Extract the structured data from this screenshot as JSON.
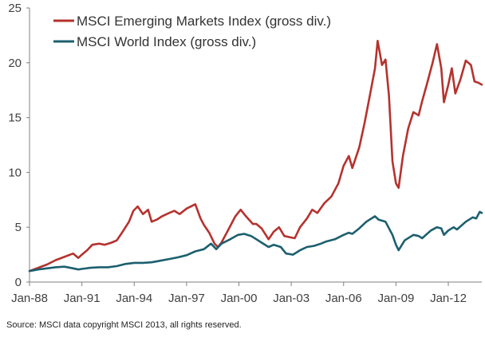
{
  "chart_data": {
    "type": "line",
    "title": "",
    "xlabel": "",
    "ylabel": "",
    "ylim": [
      0,
      25
    ],
    "yticks": [
      0,
      5,
      10,
      15,
      20,
      25
    ],
    "xticks": [
      "Jan-88",
      "Jan-91",
      "Jan-94",
      "Jan-97",
      "Jan-00",
      "Jan-03",
      "Jan-06",
      "Jan-09",
      "Jan-12"
    ],
    "x_range": [
      1988.0,
      2013.92
    ],
    "grid": false,
    "legend_position": "top-left",
    "series": [
      {
        "name": "MSCI Emerging Markets Index (gross div.)",
        "color": "#b5322e",
        "points": [
          [
            1988.0,
            1.0
          ],
          [
            1988.5,
            1.3
          ],
          [
            1989.0,
            1.6
          ],
          [
            1989.5,
            2.0
          ],
          [
            1990.0,
            2.3
          ],
          [
            1990.5,
            2.6
          ],
          [
            1990.8,
            2.2
          ],
          [
            1991.0,
            2.5
          ],
          [
            1991.3,
            2.9
          ],
          [
            1991.6,
            3.4
          ],
          [
            1992.0,
            3.5
          ],
          [
            1992.3,
            3.4
          ],
          [
            1992.7,
            3.6
          ],
          [
            1993.0,
            3.8
          ],
          [
            1993.3,
            4.5
          ],
          [
            1993.7,
            5.5
          ],
          [
            1993.95,
            6.5
          ],
          [
            1994.2,
            6.9
          ],
          [
            1994.5,
            6.2
          ],
          [
            1994.8,
            6.6
          ],
          [
            1995.0,
            5.5
          ],
          [
            1995.3,
            5.7
          ],
          [
            1995.6,
            6.0
          ],
          [
            1996.0,
            6.3
          ],
          [
            1996.3,
            6.5
          ],
          [
            1996.6,
            6.2
          ],
          [
            1997.0,
            6.7
          ],
          [
            1997.5,
            7.1
          ],
          [
            1997.8,
            5.8
          ],
          [
            1998.0,
            5.2
          ],
          [
            1998.3,
            4.5
          ],
          [
            1998.6,
            3.5
          ],
          [
            1998.8,
            3.2
          ],
          [
            1999.0,
            3.6
          ],
          [
            1999.4,
            4.8
          ],
          [
            1999.8,
            6.0
          ],
          [
            2000.1,
            6.6
          ],
          [
            2000.4,
            6.0
          ],
          [
            2000.8,
            5.3
          ],
          [
            2001.0,
            5.3
          ],
          [
            2001.3,
            4.9
          ],
          [
            2001.7,
            3.9
          ],
          [
            2002.0,
            4.6
          ],
          [
            2002.3,
            5.0
          ],
          [
            2002.6,
            4.2
          ],
          [
            2002.9,
            4.1
          ],
          [
            2003.2,
            4.0
          ],
          [
            2003.5,
            5.0
          ],
          [
            2003.9,
            5.8
          ],
          [
            2004.2,
            6.6
          ],
          [
            2004.5,
            6.3
          ],
          [
            2004.9,
            7.2
          ],
          [
            2005.3,
            7.8
          ],
          [
            2005.7,
            9.0
          ],
          [
            2006.0,
            10.6
          ],
          [
            2006.3,
            11.5
          ],
          [
            2006.5,
            10.4
          ],
          [
            2006.9,
            12.3
          ],
          [
            2007.2,
            14.5
          ],
          [
            2007.5,
            17.0
          ],
          [
            2007.8,
            19.5
          ],
          [
            2007.95,
            22.0
          ],
          [
            2008.2,
            19.8
          ],
          [
            2008.4,
            20.3
          ],
          [
            2008.6,
            17.0
          ],
          [
            2008.8,
            11.0
          ],
          [
            2009.0,
            9.0
          ],
          [
            2009.15,
            8.6
          ],
          [
            2009.4,
            11.5
          ],
          [
            2009.7,
            14.0
          ],
          [
            2010.0,
            15.5
          ],
          [
            2010.3,
            15.2
          ],
          [
            2010.5,
            16.5
          ],
          [
            2010.8,
            18.2
          ],
          [
            2011.1,
            20.0
          ],
          [
            2011.35,
            21.7
          ],
          [
            2011.6,
            19.5
          ],
          [
            2011.75,
            16.4
          ],
          [
            2012.0,
            18.0
          ],
          [
            2012.2,
            19.5
          ],
          [
            2012.4,
            17.2
          ],
          [
            2012.7,
            18.5
          ],
          [
            2013.0,
            20.2
          ],
          [
            2013.3,
            19.8
          ],
          [
            2013.5,
            18.3
          ],
          [
            2013.7,
            18.2
          ],
          [
            2013.92,
            18.0
          ]
        ]
      },
      {
        "name": "MSCI World Index (gross div.)",
        "color": "#1c5f6e",
        "points": [
          [
            1988.0,
            1.0
          ],
          [
            1988.5,
            1.15
          ],
          [
            1989.0,
            1.25
          ],
          [
            1989.5,
            1.35
          ],
          [
            1990.0,
            1.4
          ],
          [
            1990.5,
            1.25
          ],
          [
            1990.8,
            1.15
          ],
          [
            1991.0,
            1.2
          ],
          [
            1991.5,
            1.3
          ],
          [
            1992.0,
            1.35
          ],
          [
            1992.5,
            1.35
          ],
          [
            1993.0,
            1.45
          ],
          [
            1993.5,
            1.65
          ],
          [
            1994.0,
            1.75
          ],
          [
            1994.5,
            1.75
          ],
          [
            1995.0,
            1.8
          ],
          [
            1995.5,
            1.95
          ],
          [
            1996.0,
            2.1
          ],
          [
            1996.5,
            2.25
          ],
          [
            1997.0,
            2.45
          ],
          [
            1997.5,
            2.8
          ],
          [
            1998.0,
            3.0
          ],
          [
            1998.4,
            3.5
          ],
          [
            1998.7,
            3.0
          ],
          [
            1999.0,
            3.5
          ],
          [
            1999.5,
            3.9
          ],
          [
            1999.95,
            4.3
          ],
          [
            2000.3,
            4.4
          ],
          [
            2000.7,
            4.2
          ],
          [
            2001.0,
            3.9
          ],
          [
            2001.3,
            3.6
          ],
          [
            2001.7,
            3.2
          ],
          [
            2002.0,
            3.4
          ],
          [
            2002.4,
            3.2
          ],
          [
            2002.7,
            2.6
          ],
          [
            2003.1,
            2.5
          ],
          [
            2003.5,
            2.9
          ],
          [
            2003.9,
            3.2
          ],
          [
            2004.3,
            3.3
          ],
          [
            2004.7,
            3.5
          ],
          [
            2005.0,
            3.7
          ],
          [
            2005.5,
            3.9
          ],
          [
            2006.0,
            4.3
          ],
          [
            2006.3,
            4.5
          ],
          [
            2006.5,
            4.4
          ],
          [
            2006.9,
            4.9
          ],
          [
            2007.3,
            5.5
          ],
          [
            2007.8,
            6.0
          ],
          [
            2008.0,
            5.7
          ],
          [
            2008.4,
            5.5
          ],
          [
            2008.8,
            4.3
          ],
          [
            2009.0,
            3.4
          ],
          [
            2009.15,
            2.9
          ],
          [
            2009.5,
            3.8
          ],
          [
            2010.0,
            4.3
          ],
          [
            2010.3,
            4.2
          ],
          [
            2010.5,
            4.0
          ],
          [
            2011.0,
            4.7
          ],
          [
            2011.35,
            5.0
          ],
          [
            2011.6,
            4.9
          ],
          [
            2011.75,
            4.3
          ],
          [
            2012.0,
            4.7
          ],
          [
            2012.3,
            5.0
          ],
          [
            2012.5,
            4.8
          ],
          [
            2013.0,
            5.5
          ],
          [
            2013.4,
            5.9
          ],
          [
            2013.6,
            5.8
          ],
          [
            2013.8,
            6.4
          ],
          [
            2013.92,
            6.3
          ]
        ]
      }
    ]
  },
  "footer": {
    "source": "Source: MSCI data copyright MSCI 2013, all rights reserved."
  }
}
